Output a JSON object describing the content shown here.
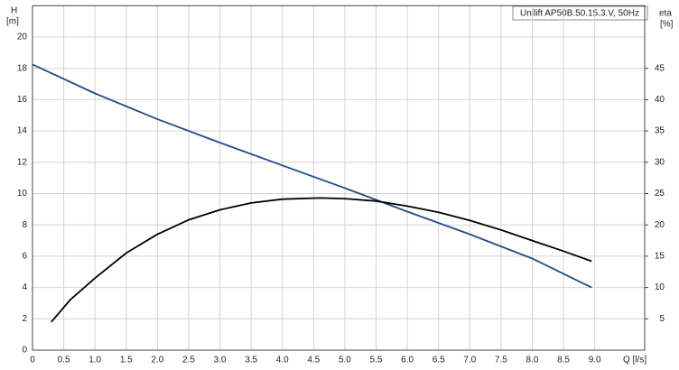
{
  "chart_data": {
    "type": "line",
    "title": "Unilift AP50B.50.15.3.V, 50Hz",
    "xlabel": "Q [l/s]",
    "ylabel": "H",
    "yunit": "[m]",
    "y2label": "eta",
    "y2unit": "[%]",
    "xlim": [
      0,
      9.8
    ],
    "xticks": [
      0,
      0.5,
      {
        "value": 1,
        "label": "1.0"
      },
      1.5,
      {
        "value": 2,
        "label": "2.0"
      },
      2.5,
      {
        "value": 3,
        "label": "3.0"
      },
      3.5,
      {
        "value": 4,
        "label": "4.0"
      },
      4.5,
      {
        "value": 5,
        "label": "5.0"
      },
      5.5,
      {
        "value": 6,
        "label": "6.0"
      },
      6.5,
      {
        "value": 7,
        "label": "7.0"
      },
      7.5,
      {
        "value": 8,
        "label": "8.0"
      },
      8.5,
      {
        "value": 9,
        "label": "9.0"
      }
    ],
    "ylim": [
      0,
      22
    ],
    "yticks": [
      0,
      2,
      4,
      6,
      8,
      10,
      12,
      14,
      16,
      18,
      20
    ],
    "y2lim": [
      0,
      55
    ],
    "y2ticks": [
      5,
      10,
      15,
      20,
      25,
      30,
      35,
      40,
      45
    ],
    "grid": true,
    "series": [
      {
        "color": "#1f4e8c",
        "x": [
          0,
          1,
          2,
          3,
          4,
          5,
          5.6,
          6,
          7,
          8,
          8.95
        ],
        "values": [
          18.25,
          16.4,
          14.75,
          13.25,
          11.8,
          10.35,
          9.45,
          8.85,
          7.4,
          5.85,
          4.0
        ]
      },
      {
        "color": "#000000",
        "axis": "y2",
        "x": [
          0.3,
          0.6,
          1,
          1.5,
          2,
          2.5,
          3,
          3.5,
          4,
          4.6,
          5,
          5.5,
          6,
          6.5,
          7,
          7.5,
          8,
          8.5,
          8.95
        ],
        "values": [
          4.5,
          8.0,
          11.5,
          15.5,
          18.5,
          20.8,
          22.4,
          23.5,
          24.1,
          24.3,
          24.2,
          23.8,
          23.0,
          22.0,
          20.7,
          19.2,
          17.5,
          15.8,
          14.2
        ]
      }
    ]
  }
}
